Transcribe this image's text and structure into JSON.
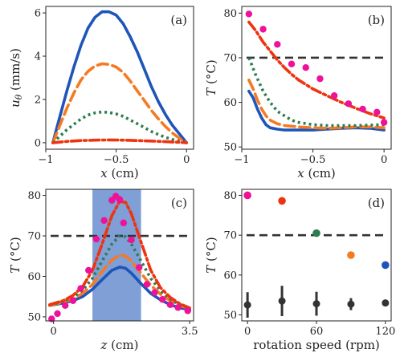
{
  "chart_data": [
    {
      "panel": "(a)",
      "type": "line",
      "xlabel": "x (cm)",
      "ylabel": "u_θ (mm/s)",
      "xlim": [
        -1.0,
        0.05
      ],
      "ylim": [
        -0.3,
        6.3
      ],
      "xticks": [
        -1,
        -0.5,
        0
      ],
      "xtick_labels": [
        "−1",
        "−0.5",
        "0"
      ],
      "yticks": [
        0,
        2,
        4,
        6
      ],
      "ytick_labels": [
        "0",
        "2",
        "4",
        "6"
      ],
      "series": [
        {
          "color": "#1f55b8",
          "dash": "solid",
          "x": [
            -0.95,
            -0.9,
            -0.85,
            -0.8,
            -0.75,
            -0.7,
            -0.65,
            -0.6,
            -0.55,
            -0.5,
            -0.45,
            -0.4,
            -0.35,
            -0.3,
            -0.25,
            -0.2,
            -0.15,
            -0.1,
            -0.05,
            0.0
          ],
          "y": [
            0.0,
            1.2,
            2.4,
            3.5,
            4.5,
            5.3,
            5.8,
            6.05,
            6.05,
            5.9,
            5.5,
            4.9,
            4.2,
            3.4,
            2.6,
            1.9,
            1.3,
            0.8,
            0.4,
            0.0
          ]
        },
        {
          "color": "#f57a22",
          "dash": "long-dash",
          "x": [
            -0.95,
            -0.9,
            -0.85,
            -0.8,
            -0.75,
            -0.7,
            -0.65,
            -0.6,
            -0.55,
            -0.5,
            -0.45,
            -0.4,
            -0.35,
            -0.3,
            -0.25,
            -0.2,
            -0.15,
            -0.1,
            -0.05,
            0.0
          ],
          "y": [
            0.0,
            0.8,
            1.6,
            2.3,
            2.9,
            3.3,
            3.55,
            3.65,
            3.62,
            3.5,
            3.25,
            2.85,
            2.4,
            1.95,
            1.5,
            1.1,
            0.75,
            0.45,
            0.2,
            0.0
          ]
        },
        {
          "color": "#2e7d4f",
          "dash": "dotted",
          "x": [
            -0.95,
            -0.9,
            -0.85,
            -0.8,
            -0.75,
            -0.7,
            -0.65,
            -0.6,
            -0.55,
            -0.5,
            -0.45,
            -0.4,
            -0.35,
            -0.3,
            -0.25,
            -0.2,
            -0.15,
            -0.1,
            -0.05,
            0.0
          ],
          "y": [
            0.0,
            0.3,
            0.6,
            0.85,
            1.1,
            1.28,
            1.38,
            1.42,
            1.4,
            1.33,
            1.22,
            1.05,
            0.88,
            0.7,
            0.52,
            0.38,
            0.25,
            0.15,
            0.07,
            0.0
          ]
        },
        {
          "color": "#ee3311",
          "dash": "dash-dot",
          "x": [
            -0.95,
            -0.85,
            -0.75,
            -0.65,
            -0.55,
            -0.45,
            -0.35,
            -0.25,
            -0.15,
            -0.05,
            0.0
          ],
          "y": [
            0.0,
            0.06,
            0.1,
            0.12,
            0.13,
            0.12,
            0.1,
            0.08,
            0.05,
            0.02,
            0.0
          ]
        }
      ]
    },
    {
      "panel": "(b)",
      "type": "line",
      "xlabel": "x (cm)",
      "ylabel": "T (°C)",
      "xlim": [
        -1.0,
        0.05
      ],
      "ylim": [
        49.5,
        81.5
      ],
      "xticks": [
        -1,
        -0.5,
        0
      ],
      "xtick_labels": [
        "−1",
        "−0.5",
        "0"
      ],
      "yticks": [
        50,
        60,
        70,
        80
      ],
      "ytick_labels": [
        "50",
        "60",
        "70",
        "80"
      ],
      "reference_line": 70,
      "series": [
        {
          "color": "#1f55b8",
          "dash": "solid",
          "x": [
            -0.95,
            -0.92,
            -0.89,
            -0.86,
            -0.83,
            -0.8,
            -0.75,
            -0.7,
            -0.6,
            -0.5,
            -0.4,
            -0.3,
            -0.2,
            -0.1,
            0.0
          ],
          "y": [
            62.5,
            61.0,
            58.5,
            56.5,
            55.0,
            54.3,
            54.0,
            53.8,
            53.8,
            53.8,
            54.0,
            54.2,
            54.3,
            54.2,
            53.8
          ]
        },
        {
          "color": "#f57a22",
          "dash": "long-dash",
          "x": [
            -0.95,
            -0.92,
            -0.89,
            -0.86,
            -0.83,
            -0.8,
            -0.75,
            -0.7,
            -0.6,
            -0.5,
            -0.4,
            -0.3,
            -0.2,
            -0.1,
            0.0
          ],
          "y": [
            65.0,
            63.0,
            60.5,
            58.5,
            57.0,
            56.0,
            55.2,
            54.8,
            54.5,
            54.3,
            54.2,
            54.3,
            54.5,
            54.5,
            54.3
          ]
        },
        {
          "color": "#2e7d4f",
          "dash": "dotted",
          "x": [
            -0.95,
            -0.9,
            -0.85,
            -0.8,
            -0.75,
            -0.7,
            -0.65,
            -0.6,
            -0.5,
            -0.4,
            -0.3,
            -0.2,
            -0.1,
            0.0
          ],
          "y": [
            70.0,
            66.0,
            62.5,
            60.0,
            58.0,
            57.0,
            56.0,
            55.5,
            55.0,
            54.8,
            54.8,
            54.8,
            54.9,
            55.0
          ]
        },
        {
          "color": "#ee3311",
          "dash": "dash-dot",
          "x": [
            -0.95,
            -0.9,
            -0.85,
            -0.8,
            -0.75,
            -0.7,
            -0.65,
            -0.6,
            -0.5,
            -0.4,
            -0.3,
            -0.2,
            -0.1,
            0.0
          ],
          "y": [
            78.0,
            76.0,
            73.5,
            71.5,
            69.5,
            67.8,
            66.3,
            65.0,
            63.0,
            61.5,
            60.0,
            58.7,
            57.5,
            56.5
          ]
        }
      ],
      "scatter": {
        "color": "#ee1199",
        "x": [
          -0.95,
          -0.85,
          -0.75,
          -0.65,
          -0.55,
          -0.45,
          -0.35,
          -0.25,
          -0.15,
          -0.05,
          0.0
        ],
        "y": [
          79.8,
          76.4,
          73.0,
          68.6,
          67.8,
          65.3,
          61.5,
          59.7,
          58.5,
          57.8,
          55.5
        ]
      }
    },
    {
      "panel": "(c)",
      "type": "line",
      "xlabel": "z (cm)",
      "ylabel": "T (°C)",
      "xlim": [
        -0.2,
        3.6
      ],
      "ylim": [
        49.0,
        81.5
      ],
      "xticks": [
        0,
        3.5
      ],
      "xtick_labels": [
        "0",
        "3.5"
      ],
      "yticks": [
        50,
        60,
        70,
        80
      ],
      "ytick_labels": [
        "50",
        "60",
        "70",
        "80"
      ],
      "reference_line": 70,
      "shaded_region": {
        "x0": 1.0,
        "x1": 2.25,
        "color": "#7f9fd6"
      },
      "series": [
        {
          "color": "#1f55b8",
          "dash": "solid",
          "x": [
            -0.1,
            0.0,
            0.25,
            0.5,
            0.75,
            1.0,
            1.25,
            1.5,
            1.7,
            1.85,
            2.0,
            2.25,
            2.5,
            2.75,
            3.0,
            3.25,
            3.5
          ],
          "y": [
            52.8,
            53.0,
            53.4,
            54.0,
            55.0,
            56.8,
            59.2,
            61.5,
            62.3,
            62.0,
            60.8,
            58.2,
            55.8,
            54.2,
            53.0,
            52.2,
            51.8
          ]
        },
        {
          "color": "#f57a22",
          "dash": "long-dash",
          "x": [
            -0.1,
            0.0,
            0.25,
            0.5,
            0.75,
            1.0,
            1.25,
            1.5,
            1.7,
            1.85,
            2.0,
            2.25,
            2.5,
            2.75,
            3.0,
            3.25,
            3.5
          ],
          "y": [
            52.8,
            53.1,
            53.6,
            54.4,
            55.8,
            58.0,
            61.2,
            64.0,
            65.3,
            65.0,
            63.8,
            60.8,
            57.8,
            55.6,
            54.0,
            52.8,
            52.0
          ]
        },
        {
          "color": "#2e7d4f",
          "dash": "dotted",
          "x": [
            -0.1,
            0.0,
            0.25,
            0.5,
            0.75,
            1.0,
            1.25,
            1.5,
            1.7,
            1.85,
            2.0,
            2.25,
            2.5,
            2.75,
            3.0,
            3.25,
            3.5
          ],
          "y": [
            53.0,
            53.2,
            53.8,
            54.8,
            56.6,
            59.5,
            63.8,
            68.0,
            70.0,
            69.8,
            68.0,
            63.8,
            59.5,
            56.5,
            54.4,
            53.0,
            52.1
          ]
        },
        {
          "color": "#ee3311",
          "dash": "dash-dot",
          "x": [
            -0.1,
            0.0,
            0.25,
            0.5,
            0.75,
            1.0,
            1.25,
            1.5,
            1.7,
            1.85,
            2.0,
            2.25,
            2.5,
            2.75,
            3.0,
            3.25,
            3.5
          ],
          "y": [
            53.0,
            53.3,
            54.0,
            55.3,
            57.5,
            61.5,
            68.0,
            75.0,
            78.5,
            78.3,
            75.5,
            68.5,
            61.5,
            57.2,
            54.8,
            53.2,
            52.2
          ]
        }
      ],
      "scatter": {
        "color": "#ee1199",
        "x": [
          -0.05,
          0.1,
          0.3,
          0.5,
          0.7,
          0.9,
          1.1,
          1.3,
          1.5,
          1.6,
          1.7,
          1.8,
          2.0,
          2.2,
          2.4,
          2.6,
          2.8,
          3.0,
          3.2,
          3.45
        ],
        "y": [
          49.5,
          50.8,
          52.8,
          54.0,
          57.0,
          61.5,
          69.2,
          73.8,
          78.8,
          79.8,
          79.0,
          73.2,
          69.0,
          62.2,
          58.0,
          56.0,
          54.3,
          53.0,
          52.3,
          51.5
        ]
      }
    },
    {
      "panel": "(d)",
      "type": "scatter",
      "xlabel": "rotation speed (rpm)",
      "ylabel": "T (°C)",
      "xlim": [
        -5,
        125
      ],
      "ylim": [
        48.5,
        81.5
      ],
      "xticks": [
        0,
        60,
        120
      ],
      "xtick_labels": [
        "0",
        "60",
        "120"
      ],
      "yticks": [
        50,
        60,
        70,
        80
      ],
      "ytick_labels": [
        "50",
        "60",
        "70",
        "80"
      ],
      "reference_line": 70,
      "points": [
        {
          "x": 0,
          "y": 80.0,
          "color": "#ee1199"
        },
        {
          "x": 30,
          "y": 78.6,
          "color": "#ee3311"
        },
        {
          "x": 60,
          "y": 70.5,
          "color": "#2e7d4f"
        },
        {
          "x": 90,
          "y": 65.0,
          "color": "#f57a22"
        },
        {
          "x": 120,
          "y": 62.5,
          "color": "#1f55b8"
        }
      ],
      "errorbars": {
        "color": "#333333",
        "x": [
          0,
          30,
          60,
          90,
          120
        ],
        "y": [
          52.5,
          53.5,
          52.8,
          52.7,
          53.0
        ],
        "yerr": [
          3.2,
          3.8,
          3.0,
          1.5,
          0.5
        ]
      }
    }
  ]
}
